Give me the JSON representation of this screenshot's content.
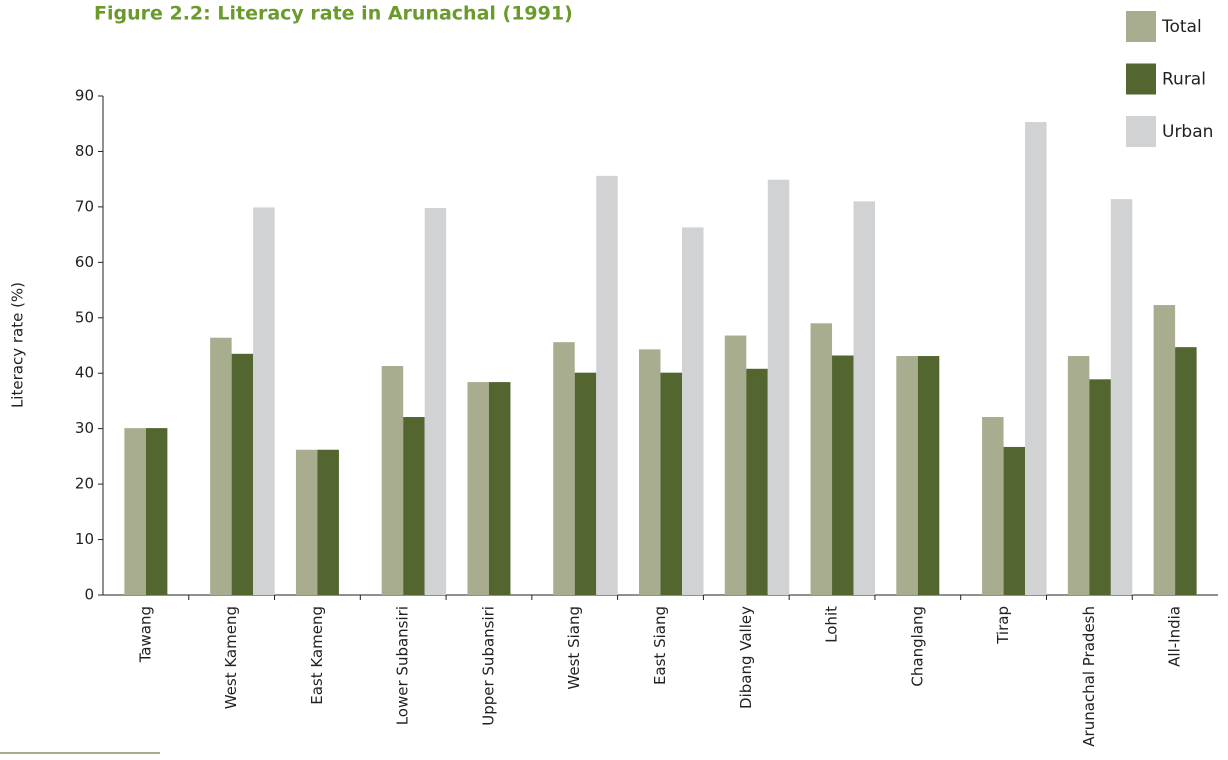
{
  "chart_data": {
    "type": "bar",
    "title": "Figure 2.2: Literacy rate in Arunachal (1991)",
    "y_label": "Literacy rate (%)",
    "categories": [
      "Tawang",
      "West Kameng",
      "East Kameng",
      "Lower Subansiri",
      "Upper Subansiri",
      "West Siang",
      "East Siang",
      "Dibang Valley",
      "Lohit",
      "Changlang",
      "Tirap",
      "Arunachal Pradesh",
      "All-India"
    ],
    "series": [
      {
        "name": "Total",
        "color": "#a9ad8f",
        "values": [
          30.1,
          46.4,
          26.2,
          41.3,
          38.4,
          45.6,
          44.3,
          46.8,
          49.0,
          43.1,
          32.1,
          43.1,
          52.3
        ]
      },
      {
        "name": "Rural",
        "color": "#536630",
        "values": [
          30.1,
          43.5,
          26.2,
          32.1,
          38.4,
          40.1,
          40.1,
          40.8,
          43.2,
          43.1,
          26.7,
          38.9,
          44.7
        ]
      },
      {
        "name": "Urban",
        "color": "#d1d2d4",
        "values": [
          null,
          69.9,
          null,
          69.8,
          null,
          75.6,
          66.3,
          74.9,
          71.0,
          null,
          85.3,
          71.4,
          null
        ]
      }
    ],
    "ylim": [
      0,
      90
    ],
    "yticks": [
      0,
      10,
      20,
      30,
      40,
      50,
      60,
      70,
      80,
      90
    ],
    "legend": "top-right"
  }
}
